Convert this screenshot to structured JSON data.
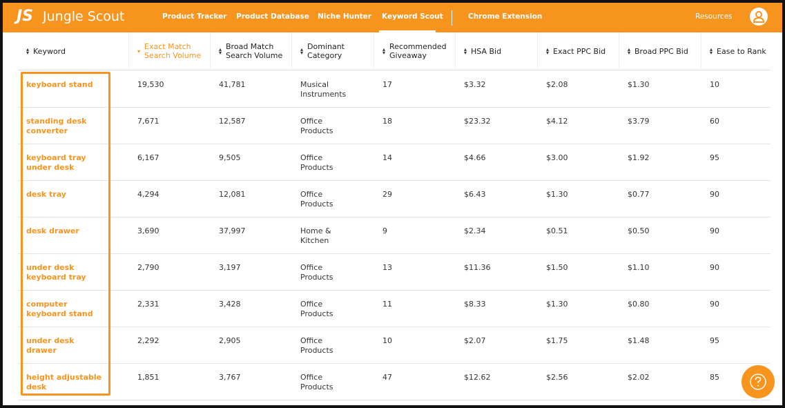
{
  "nav": {
    "logo_mark": "JS",
    "logo": "Jungle Scout",
    "items": [
      "Product Tracker",
      "Product Database",
      "Niche Hunter",
      "Keyword Scout",
      "Chrome Extension"
    ],
    "resources": "Resources"
  },
  "table": {
    "headers": [
      "Keyword",
      "Exact Match Search Volume",
      "Broad Match Search Volume",
      "Dominant Category",
      "Recommended Giveaway",
      "HSA Bid",
      "Exact PPC Bid",
      "Broad PPC Bid",
      "Ease to Rank"
    ],
    "rows": [
      [
        "keyboard stand",
        "19,530",
        "41,781",
        "Musical Instruments",
        "17",
        "$3.32",
        "$2.08",
        "$1.30",
        "10"
      ],
      [
        "standing desk converter",
        "7,671",
        "12,587",
        "Office Products",
        "18",
        "$23.32",
        "$4.12",
        "$3.79",
        "60"
      ],
      [
        "keyboard tray under desk",
        "6,167",
        "9,505",
        "Office Products",
        "14",
        "$4.66",
        "$3.00",
        "$1.92",
        "95"
      ],
      [
        "desk tray",
        "4,294",
        "12,081",
        "Office Products",
        "29",
        "$6.43",
        "$1.30",
        "$0.77",
        "90"
      ],
      [
        "desk drawer",
        "3,690",
        "37,997",
        "Home & Kitchen",
        "9",
        "$2.34",
        "$0.51",
        "$0.50",
        "90"
      ],
      [
        "under desk keyboard tray",
        "2,790",
        "3,197",
        "Office Products",
        "13",
        "$11.36",
        "$1.50",
        "$1.10",
        "90"
      ],
      [
        "computer keyboard stand",
        "2,331",
        "3,428",
        "Office Products",
        "11",
        "$8.33",
        "$1.30",
        "$0.80",
        "90"
      ],
      [
        "under desk drawer",
        "2,292",
        "2,905",
        "Office Products",
        "10",
        "$2.07",
        "$1.75",
        "$1.48",
        "95"
      ],
      [
        "height adjustable desk",
        "1,851",
        "3,767",
        "Office Products",
        "47",
        "$12.62",
        "$2.56",
        "$2.02",
        "85"
      ]
    ]
  }
}
